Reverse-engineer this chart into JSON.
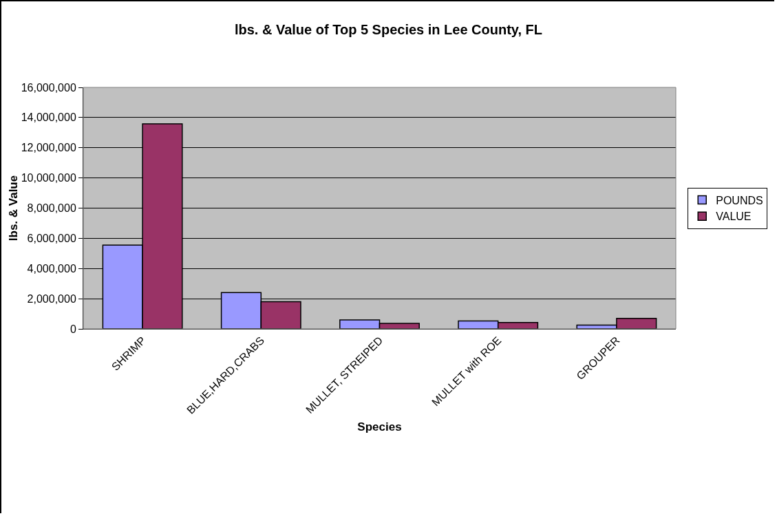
{
  "chart_data": {
    "type": "bar",
    "title": "lbs. & Value of Top 5 Species in Lee County, FL",
    "xlabel": "Species",
    "ylabel": "lbs. & Value",
    "categories": [
      "SHRIMP",
      "BLUE,HARD,CRABS",
      "MULLET, STREIPED",
      "MULLET with ROE",
      "GROUPER"
    ],
    "series": [
      {
        "name": "POUNDS",
        "color": "#9999ff",
        "values": [
          5550000,
          2400000,
          590000,
          520000,
          250000
        ]
      },
      {
        "name": "VALUE",
        "color": "#993366",
        "values": [
          13580000,
          1800000,
          360000,
          420000,
          690000
        ]
      }
    ],
    "ylim": [
      0,
      16000000
    ],
    "yticks": [
      {
        "value": 0,
        "label": "0"
      },
      {
        "value": 2000000,
        "label": "2,000,000"
      },
      {
        "value": 4000000,
        "label": "4,000,000"
      },
      {
        "value": 6000000,
        "label": "6,000,000"
      },
      {
        "value": 8000000,
        "label": "8,000,000"
      },
      {
        "value": 10000000,
        "label": "10,000,000"
      },
      {
        "value": 12000000,
        "label": "12,000,000"
      },
      {
        "value": 14000000,
        "label": "14,000,000"
      },
      {
        "value": 16000000,
        "label": "16,000,000"
      }
    ],
    "grid": "y",
    "legend": "right"
  }
}
